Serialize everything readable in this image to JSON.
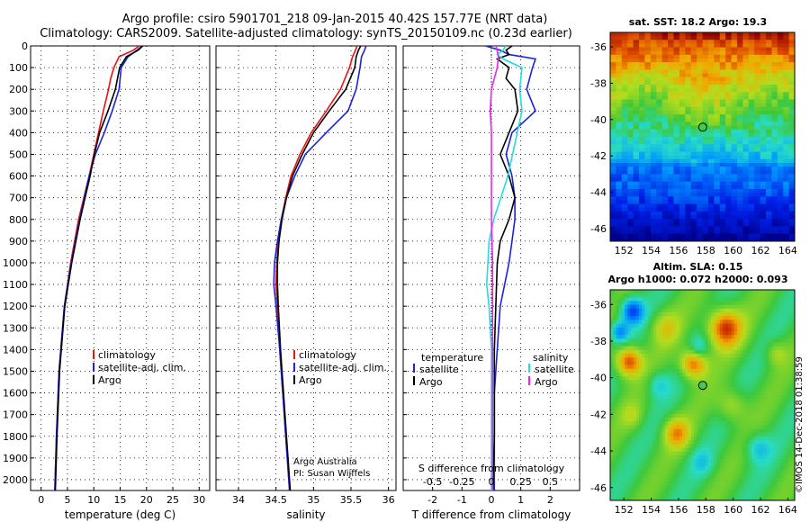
{
  "title": {
    "line1": "Argo profile: csiro 5901701_218 09-Jan-2015 40.42S 157.77E (NRT data)",
    "line2": "Climatology: CARS2009. Satellite-adjusted climatology: synTS_20150109.nc (0.23d earlier)"
  },
  "watermark": "©IMOS 14-Dec-2018 01:38:59",
  "colors": {
    "climatology": "#ee1111",
    "satellite": "#1a23e0",
    "argo": "#000000",
    "sat_salinity": "#22dddd",
    "argo_salinity": "#ee22ee"
  },
  "chart_data": [
    {
      "type": "line",
      "name": "temperature",
      "xlabel": "temperature (deg C)",
      "ylabel": "",
      "xlim": [
        -2,
        32
      ],
      "ylim": [
        2050,
        0
      ],
      "xticks": [
        0,
        5,
        10,
        15,
        20,
        25,
        30
      ],
      "yticks": [
        0,
        100,
        200,
        300,
        400,
        500,
        600,
        700,
        800,
        900,
        1000,
        1100,
        1200,
        1300,
        1400,
        1500,
        1600,
        1700,
        1800,
        1900,
        2000
      ],
      "legend": {
        "position": "lower-right",
        "entries": [
          "climatology",
          "satellite-adj. clim.",
          "Argo"
        ]
      },
      "series": [
        {
          "name": "climatology",
          "color": "climatology",
          "depth": [
            0,
            20,
            50,
            100,
            150,
            200,
            300,
            400,
            500,
            600,
            800,
            1000,
            1200,
            1500,
            1800,
            2050
          ],
          "values": [
            18.6,
            17.5,
            14.8,
            13.8,
            13.2,
            12.8,
            11.8,
            10.9,
            10.0,
            9.1,
            7.1,
            5.6,
            4.4,
            3.4,
            2.9,
            2.6
          ]
        },
        {
          "name": "satellite-adj. clim.",
          "color": "satellite",
          "depth": [
            0,
            20,
            50,
            100,
            150,
            200,
            300,
            400,
            500,
            600,
            800,
            1000,
            1200,
            1500,
            1800,
            2050
          ],
          "values": [
            19.2,
            18.2,
            16.5,
            15.2,
            15.0,
            14.8,
            13.5,
            12.0,
            10.3,
            9.1,
            7.3,
            5.7,
            4.4,
            3.4,
            2.9,
            2.6
          ]
        },
        {
          "name": "Argo",
          "color": "argo",
          "depth": [
            0,
            20,
            50,
            100,
            150,
            200,
            300,
            400,
            500,
            600,
            800,
            1000,
            1200,
            1500,
            1800,
            2050
          ],
          "values": [
            19.3,
            18.4,
            16.2,
            14.9,
            14.5,
            14.1,
            12.7,
            11.1,
            10.1,
            9.3,
            7.4,
            5.8,
            4.5,
            3.5,
            3.0,
            2.7
          ]
        }
      ]
    },
    {
      "type": "line",
      "name": "salinity",
      "xlabel": "salinity",
      "xlim": [
        33.7,
        36.1
      ],
      "ylim": [
        2050,
        0
      ],
      "xticks": [
        34,
        34.5,
        35,
        35.5,
        36
      ],
      "legend": {
        "position": "lower-right",
        "entries": [
          "climatology",
          "satellite-adj. clim.",
          "Argo"
        ]
      },
      "series": [
        {
          "name": "climatology",
          "color": "climatology",
          "depth": [
            0,
            20,
            50,
            100,
            200,
            300,
            400,
            500,
            600,
            700,
            800,
            900,
            1000,
            1100,
            1200,
            1400,
            1600,
            1800,
            2050
          ],
          "values": [
            35.58,
            35.56,
            35.52,
            35.48,
            35.36,
            35.17,
            34.97,
            34.82,
            34.7,
            34.63,
            34.57,
            34.53,
            34.51,
            34.5,
            34.52,
            34.55,
            34.59,
            34.63,
            34.68
          ]
        },
        {
          "name": "satellite-adj. clim.",
          "color": "satellite",
          "depth": [
            0,
            20,
            50,
            100,
            200,
            300,
            400,
            500,
            600,
            700,
            800,
            900,
            1000,
            1100,
            1200,
            1400,
            1600,
            1800,
            2050
          ],
          "values": [
            35.7,
            35.68,
            35.64,
            35.62,
            35.57,
            35.46,
            35.17,
            34.89,
            34.75,
            34.64,
            34.57,
            34.52,
            34.48,
            34.47,
            34.5,
            34.55,
            34.59,
            34.63,
            34.68
          ]
        },
        {
          "name": "Argo",
          "color": "argo",
          "depth": [
            0,
            20,
            50,
            100,
            200,
            300,
            400,
            500,
            600,
            700,
            800,
            900,
            1000,
            1100,
            1200,
            1400,
            1600,
            1800,
            2050
          ],
          "values": [
            35.63,
            35.6,
            35.57,
            35.55,
            35.43,
            35.21,
            35.0,
            34.85,
            34.72,
            34.64,
            34.58,
            34.54,
            34.52,
            34.52,
            34.53,
            34.56,
            34.6,
            34.64,
            34.69
          ]
        }
      ],
      "annotations": [
        "Argo Australia",
        "PI: Susan Wijffels"
      ]
    },
    {
      "type": "line",
      "name": "difference",
      "xlabel": "T difference from climatology",
      "x2label": "S difference from climatology",
      "xlim": [
        -3,
        3
      ],
      "x2lim": [
        -0.75,
        0.75
      ],
      "ylim": [
        2050,
        0
      ],
      "xticks": [
        -2,
        -1,
        0,
        1,
        2
      ],
      "x2ticks": [
        -0.5,
        -0.25,
        0,
        0.25,
        0.5
      ],
      "x2ticklabels": [
        "-0.5",
        "-0.25",
        "0",
        "0.25",
        "0.5"
      ],
      "legend": {
        "position": "lower",
        "entries": [
          "temperature",
          "satellite",
          "Argo",
          "salinity",
          "satellite",
          "Argo"
        ]
      },
      "series": [
        {
          "name": "T satellite",
          "color": "satellite",
          "axis": "x",
          "depth": [
            0,
            20,
            40,
            60,
            100,
            200,
            300,
            400,
            500,
            600,
            700,
            800,
            900,
            1000,
            1200,
            1400,
            1600,
            1800,
            2050
          ],
          "values": [
            -0.2,
            0.3,
            0.6,
            1.5,
            1.4,
            1.2,
            1.5,
            0.7,
            0.5,
            0.7,
            0.8,
            0.8,
            0.7,
            0.6,
            0.3,
            0.2,
            0.1,
            0.1,
            0.1
          ]
        },
        {
          "name": "T Argo",
          "color": "argo",
          "axis": "x",
          "depth": [
            0,
            20,
            40,
            60,
            100,
            150,
            200,
            300,
            400,
            500,
            600,
            700,
            800,
            900,
            1000,
            1200,
            1400,
            1600,
            1800,
            2050
          ],
          "values": [
            0.7,
            0.5,
            0.6,
            0.2,
            0.6,
            0.5,
            0.8,
            0.9,
            0.6,
            0.3,
            0.6,
            0.8,
            0.6,
            0.3,
            0.2,
            0.15,
            0.1,
            0.1,
            0.1,
            0.05
          ]
        },
        {
          "name": "S satellite",
          "color": "sat_salinity",
          "axis": "x2",
          "depth": [
            0,
            20,
            40,
            60,
            100,
            200,
            300,
            400,
            500,
            600,
            700,
            800,
            900,
            1000,
            1100,
            1200,
            1300,
            1400,
            1500,
            1600,
            1800,
            2050
          ],
          "values": [
            0.12,
            0.1,
            0.05,
            0.1,
            0.26,
            0.24,
            0.26,
            0.22,
            0.18,
            0.14,
            0.08,
            0.02,
            -0.02,
            -0.03,
            -0.04,
            -0.02,
            -0.01,
            0.0,
            0.0,
            0.0,
            0.0,
            0.0
          ]
        },
        {
          "name": "S Argo",
          "color": "argo_salinity",
          "axis": "x2",
          "depth": [
            0,
            50,
            100,
            200,
            300,
            400,
            500,
            600,
            800,
            1000,
            1200,
            1400,
            1600,
            1800,
            2050
          ],
          "values": [
            0.04,
            0.06,
            0.05,
            0.0,
            -0.01,
            0.0,
            0.0,
            0.0,
            0.0,
            0.01,
            0.01,
            0.01,
            0.01,
            0.01,
            0.01
          ]
        }
      ]
    },
    {
      "type": "heatmap",
      "name": "sst_map",
      "title": "sat. SST: 18.2 Argo: 19.3",
      "xticks": [
        152,
        154,
        156,
        158,
        160,
        162,
        164
      ],
      "yticks": [
        -36,
        -38,
        -40,
        -42,
        -44,
        -46
      ],
      "xlim": [
        151,
        164.5
      ],
      "ylim": [
        -46.7,
        -35.2
      ],
      "marker": {
        "lon": 157.77,
        "lat": -40.42
      }
    },
    {
      "type": "heatmap",
      "name": "sla_map",
      "title": "Altim. SLA: 0.15",
      "subtitle": "Argo h1000: 0.072 h2000: 0.093",
      "xticks": [
        152,
        154,
        156,
        158,
        160,
        162,
        164
      ],
      "yticks": [
        -36,
        -38,
        -40,
        -42,
        -44,
        -46
      ],
      "xlim": [
        151,
        164.5
      ],
      "ylim": [
        -46.7,
        -35.2
      ],
      "marker": {
        "lon": 157.77,
        "lat": -40.42
      }
    }
  ]
}
